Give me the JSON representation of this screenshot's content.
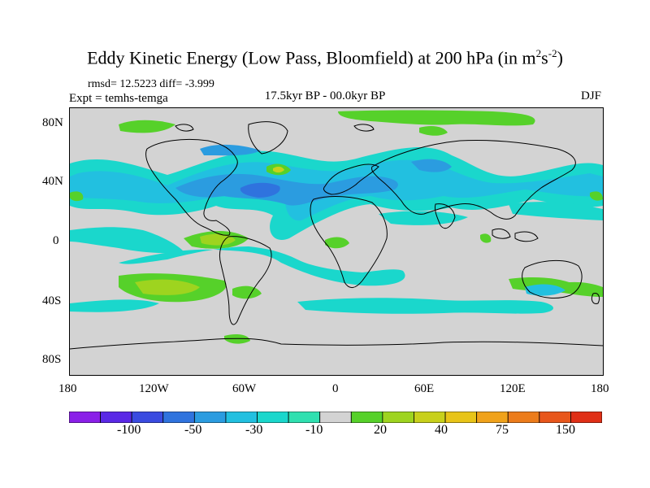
{
  "title": {
    "main": "Eddy Kinetic Energy (Low Pass, Bloomfield) at 200 hPa (in m",
    "sup1": "2",
    "mid": "s",
    "sup2": "-2",
    "end": ")"
  },
  "stats": {
    "rmsd_line": "rmsd= 12.5223 diff= -3.999"
  },
  "expt": "Expt = temhs-temga",
  "period": "17.5kyr BP - 00.0kyr BP",
  "season": "DJF",
  "axes": {
    "lat_ticks": [
      "80N",
      "40N",
      "0",
      "40S",
      "80S"
    ],
    "lon_ticks": [
      "180",
      "120W",
      "60W",
      "0",
      "60E",
      "120E",
      "180"
    ]
  },
  "colorbar": {
    "colors": [
      "#8a1fe8",
      "#5a28e6",
      "#3a4be0",
      "#2f73de",
      "#2b9ce0",
      "#22c0e0",
      "#1ad7cc",
      "#2fe0b0",
      "#d3d3d3",
      "#56d12a",
      "#9ed41f",
      "#c8d01b",
      "#e8c418",
      "#f0a21a",
      "#ec7c1b",
      "#e8561b",
      "#e02f16"
    ],
    "labels": [
      "-100",
      "-50",
      "-30",
      "-10",
      "20",
      "40",
      "75",
      "150"
    ]
  },
  "fields": {
    "teal": "#1ad7cc",
    "cyan": "#22c0e0",
    "blue": "#2b9ce0",
    "deepblue": "#2f73de",
    "green": "#56d12a",
    "yellowgreen": "#9ed41f",
    "yellow": "#c8d01b",
    "coast": "#000000",
    "background": "#d3d3d3"
  }
}
